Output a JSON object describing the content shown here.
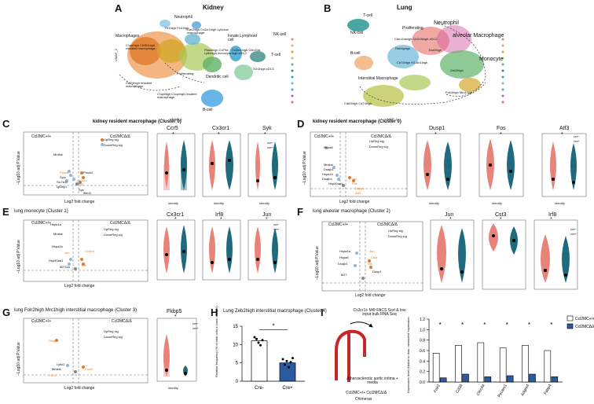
{
  "panel_letters": [
    "A",
    "B",
    "C",
    "D",
    "E",
    "F",
    "G",
    "H",
    "I"
  ],
  "colors": {
    "red": "#e8837a",
    "teal": "#1f6b7d",
    "blue": "#2c5aa0",
    "orange": "#e07a2a",
    "lightblue": "#8fb7d8"
  },
  "A": {
    "title": "Kidney",
    "axis_x": "UMAP_1",
    "axis_y": "UMAP_2",
    "labels": [
      "Neutrophil",
      "Fll1high Fln1high",
      "Ear2high Cx3cr1high Ly6clow macrophage",
      "Macrophages",
      "C1qchigh Chi3l1high resident macrophage",
      "Innate Lymphoid cell",
      "NK-cell",
      "Plac8high Cd79a Ly6chigh monocyte",
      "Cx3cr1high Clec10a high cDC2",
      "T-cell",
      "Proliferating",
      "Dendritic cell",
      "Xcr1high cDC1",
      "Ccl24high resident macrophage",
      "C1qahigh C1qchigh resident macrophage",
      "B-cell"
    ]
  },
  "B": {
    "title": "Lung",
    "axis_x": "UMAP_1",
    "axis_y": "UMAP_2",
    "labels": [
      "T-cell",
      "NK-cell",
      "Proliferating",
      "Neutrophil",
      "Clec10ahigh CD209high cDC2",
      "alveolar Macrophage",
      "Retnlghigh",
      "Ear2high",
      "B-cell",
      "Cd74high H2-Ab1high",
      "Monocyte",
      "Zeb2high",
      "Interstitial Macrophage",
      "Cd63high Cd74high",
      "Folr2high Mrc1high"
    ]
  },
  "legend": {
    "up": "UpReg sig",
    "down": "DownReg sig",
    "cre_minus": "cre−",
    "cre_plus": "cre+"
  },
  "common": {
    "volcano_x": "Log2 fold change",
    "volcano_y": "−Log10 adj P.Value",
    "violin_y": "Expression Level",
    "violin_x": "Identity",
    "star": "*"
  },
  "C": {
    "title": "kidney resident macrophage (Cluster 0)",
    "left": "Ccl2MC+/+",
    "right": "Ccl2MCΔ/Δ",
    "genes": [
      "Ccr5",
      "Cx3cr1",
      "Syk"
    ],
    "cluster": "0",
    "volcano_labels": [
      "Mmilal",
      "Fkbp5",
      "Spic",
      "Slc7a11",
      "Igf2bp1",
      "Pmch2",
      "Cx3cr1",
      "Ccr5",
      "Syk",
      "Ifitm3"
    ]
  },
  "D": {
    "title": "kidney resident macrophage (Cluster 0)",
    "left": "Ccl2MC+/+",
    "right": "Ccl2MCΔ/Δ",
    "genes": [
      "Dusp1",
      "Fos",
      "Atf3"
    ],
    "cluster": "0",
    "volcano_labels": [
      "Hspa8",
      "Mmilal",
      "Dnajb1",
      "Hspa1b",
      "Dnajb4",
      "Hsp90aa1",
      "Jun",
      "Fos",
      "Dusp1",
      "Atf3"
    ]
  },
  "E": {
    "title": "lung monocyte (Cluster 1)",
    "left": "Ccl2MC+/+",
    "right": "Ccl2MCΔ/Δ",
    "genes": [
      "Cx3cr1",
      "Irf8",
      "Jun"
    ],
    "cluster": "1",
    "volcano_labels": [
      "Hspa1a",
      "Mmilal",
      "Hspa1b",
      "Jun",
      "Hsp90aa1",
      "Ifi27l2a",
      "Cx3cr1",
      "Irf8"
    ]
  },
  "F": {
    "title": "lung alveolar macrophage (Cluster 2)",
    "left": "Ccl2MC+/+",
    "right": "Ccl2MCΔ/Δ",
    "genes": [
      "Jun",
      "Cst3",
      "Irf8"
    ],
    "cluster": "2",
    "volcano_labels": [
      "Hspa1a",
      "Hspa8",
      "Dnajb1",
      "Ifi27",
      "Jun",
      "Cst3",
      "Irf8",
      "Dusp1"
    ]
  },
  "G": {
    "title": "lung Folr2high Mrc1high interstitial macrophage (Cluster 3)",
    "left": "Ccl2MC+/+",
    "right": "Ccl2MCΔ/Δ",
    "genes": [
      "Fkbp5"
    ],
    "cluster": "3",
    "volcano_labels": [
      "Fkbp5",
      "Ly6c2",
      "Mmilal",
      "Cd74",
      "Cxcl2"
    ]
  },
  "H": {
    "title": "Lung Zeb2high interstitial macrophage (Cluster 4)",
    "chart_data": {
      "type": "bar",
      "categories": [
        "Cre-",
        "Cre+"
      ],
      "values": [
        11,
        5
      ],
      "ylabel": "Relative frequency (% of total cells in each sample)",
      "ylim": [
        0,
        15
      ],
      "yticks": [
        0,
        5,
        10,
        15
      ],
      "points": [
        [
          12,
          11.5,
          10.5,
          9.8,
          11.2
        ],
        [
          6,
          4.5,
          5.5,
          3.8,
          5.2,
          6.3
        ]
      ]
    }
  },
  "I": {
    "flow_text": "Cx3cr1+ MΦ FACS Sort & low input bulk RNA Seq",
    "tissue_text": "Atherosclerotic aortic intima + media",
    "chimera_text": "Ccl2MC+/+   Ccl2MCΔ/Δ",
    "chimera_sub": "Chimeras",
    "chart_data": {
      "type": "bar",
      "categories": [
        "Folr2",
        "Cd36",
        "Clec4a",
        "Pecam1",
        "Adgre4",
        "Fabp4"
      ],
      "series": [
        {
          "name": "Ccl2MC+/+",
          "values": [
            0.55,
            0.7,
            0.75,
            0.65,
            0.7,
            0.6
          ]
        },
        {
          "name": "Ccl2MCΔ/Δ",
          "values": [
            0.08,
            0.15,
            0.1,
            0.12,
            0.15,
            0.1
          ]
        }
      ],
      "ylabel": "Expression level relative to max. measured expression",
      "ylim": [
        0,
        1.2
      ],
      "yticks": [
        0,
        0.2,
        0.4,
        0.6,
        0.8,
        1.0,
        1.2
      ]
    }
  }
}
